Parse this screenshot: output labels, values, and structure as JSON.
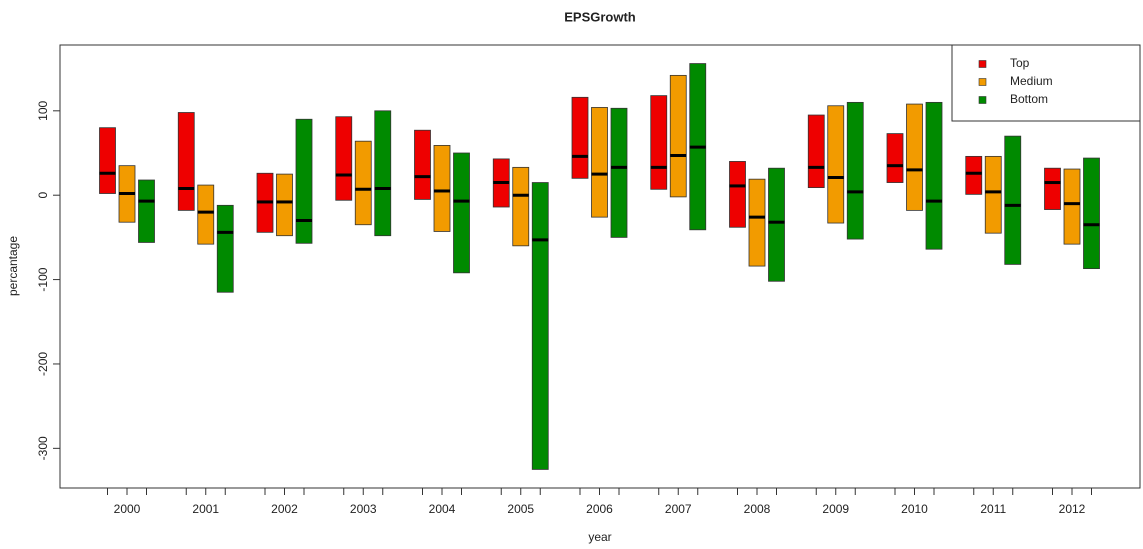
{
  "chart_data": {
    "type": "range-bar",
    "title": "EPSGrowth",
    "x_label": "year",
    "y_label": "percantage",
    "categories": [
      "2000",
      "2001",
      "2002",
      "2003",
      "2004",
      "2005",
      "2006",
      "2007",
      "2008",
      "2009",
      "2010",
      "2011",
      "2012"
    ],
    "ylim": [
      -347,
      178
    ],
    "yticks": [
      -300,
      -200,
      -100,
      0,
      100
    ],
    "legend_position": "topright",
    "series": [
      {
        "name": "Top",
        "color": "#ee0000",
        "low": [
          2,
          -18,
          -44,
          -6,
          -5,
          -14,
          20,
          7,
          -38,
          9,
          15,
          1,
          -17
        ],
        "high": [
          80,
          98,
          26,
          93,
          77,
          43,
          116,
          118,
          40,
          95,
          73,
          46,
          32
        ],
        "median": [
          26,
          8,
          -8,
          24,
          22,
          15,
          46,
          33,
          11,
          33,
          35,
          26,
          15
        ]
      },
      {
        "name": "Medium",
        "color": "#f29b00",
        "low": [
          -32,
          -58,
          -48,
          -35,
          -43,
          -60,
          -26,
          -2,
          -84,
          -33,
          -18,
          -45,
          -58
        ],
        "high": [
          35,
          12,
          25,
          64,
          59,
          33,
          104,
          142,
          19,
          106,
          108,
          46,
          31
        ],
        "median": [
          2,
          -20,
          -8,
          7,
          5,
          0,
          25,
          47,
          -26,
          21,
          30,
          4,
          -10
        ]
      },
      {
        "name": "Bottom",
        "color": "#008a00",
        "low": [
          -56,
          -115,
          -57,
          -48,
          -92,
          -325,
          -50,
          -41,
          -102,
          -52,
          -64,
          -82,
          -87
        ],
        "high": [
          18,
          -12,
          90,
          100,
          50,
          15,
          103,
          156,
          32,
          110,
          110,
          70,
          44
        ],
        "median": [
          -7,
          -44,
          -30,
          8,
          -7,
          -53,
          33,
          57,
          -32,
          4,
          -7,
          -12,
          -35
        ]
      }
    ]
  }
}
